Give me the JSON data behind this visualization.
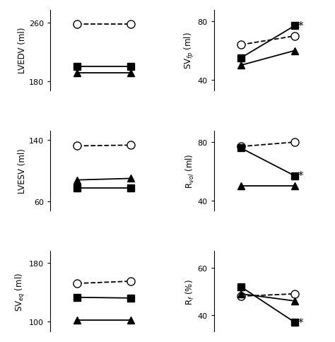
{
  "plots": [
    {
      "yticks": [
        180,
        260
      ],
      "ylim": [
        168,
        278
      ],
      "xlim": [
        0,
        1
      ],
      "series": [
        {
          "x": [
            0.25,
            0.75
          ],
          "y": [
            258,
            258
          ],
          "marker": "o",
          "linestyle": "--",
          "markersize": 8,
          "markerfacecolor": "white"
        },
        {
          "x": [
            0.25,
            0.75
          ],
          "y": [
            200,
            200
          ],
          "marker": "s",
          "linestyle": "-",
          "markersize": 7,
          "markerfacecolor": "black"
        },
        {
          "x": [
            0.25,
            0.75
          ],
          "y": [
            192,
            192
          ],
          "marker": "^",
          "linestyle": "-",
          "markersize": 7,
          "markerfacecolor": "black"
        }
      ],
      "star": null
    },
    {
      "yticks": [
        40,
        80
      ],
      "ylim": [
        33,
        88
      ],
      "xlim": [
        0,
        1
      ],
      "series": [
        {
          "x": [
            0.25,
            0.75
          ],
          "y": [
            64,
            70
          ],
          "marker": "o",
          "linestyle": "--",
          "markersize": 8,
          "markerfacecolor": "white"
        },
        {
          "x": [
            0.25,
            0.75
          ],
          "y": [
            55,
            77
          ],
          "marker": "s",
          "linestyle": "-",
          "markersize": 7,
          "markerfacecolor": "black"
        },
        {
          "x": [
            0.25,
            0.75
          ],
          "y": [
            50,
            60
          ],
          "marker": "^",
          "linestyle": "-",
          "markersize": 7,
          "markerfacecolor": "black"
        }
      ],
      "star": {
        "y": 77
      }
    },
    {
      "yticks": [
        60,
        140
      ],
      "ylim": [
        48,
        152
      ],
      "xlim": [
        0,
        1
      ],
      "series": [
        {
          "x": [
            0.25,
            0.75
          ],
          "y": [
            132,
            133
          ],
          "marker": "o",
          "linestyle": "--",
          "markersize": 8,
          "markerfacecolor": "white"
        },
        {
          "x": [
            0.25,
            0.75
          ],
          "y": [
            78,
            78
          ],
          "marker": "s",
          "linestyle": "-",
          "markersize": 7,
          "markerfacecolor": "black"
        },
        {
          "x": [
            0.25,
            0.75
          ],
          "y": [
            88,
            90
          ],
          "marker": "^",
          "linestyle": "-",
          "markersize": 7,
          "markerfacecolor": "black"
        }
      ],
      "star": null
    },
    {
      "yticks": [
        40,
        80
      ],
      "ylim": [
        33,
        88
      ],
      "xlim": [
        0,
        1
      ],
      "series": [
        {
          "x": [
            0.25,
            0.75
          ],
          "y": [
            77,
            80
          ],
          "marker": "o",
          "linestyle": "--",
          "markersize": 8,
          "markerfacecolor": "white"
        },
        {
          "x": [
            0.25,
            0.75
          ],
          "y": [
            76,
            57
          ],
          "marker": "s",
          "linestyle": "-",
          "markersize": 7,
          "markerfacecolor": "black"
        },
        {
          "x": [
            0.25,
            0.75
          ],
          "y": [
            50,
            50
          ],
          "marker": "^",
          "linestyle": "-",
          "markersize": 7,
          "markerfacecolor": "black"
        }
      ],
      "star": {
        "y": 57
      }
    },
    {
      "yticks": [
        100,
        180
      ],
      "ylim": [
        86,
        196
      ],
      "xlim": [
        0,
        1
      ],
      "series": [
        {
          "x": [
            0.25,
            0.75
          ],
          "y": [
            152,
            155
          ],
          "marker": "o",
          "linestyle": "--",
          "markersize": 8,
          "markerfacecolor": "white"
        },
        {
          "x": [
            0.25,
            0.75
          ],
          "y": [
            133,
            132
          ],
          "marker": "s",
          "linestyle": "-",
          "markersize": 7,
          "markerfacecolor": "black"
        },
        {
          "x": [
            0.25,
            0.75
          ],
          "y": [
            102,
            102
          ],
          "marker": "^",
          "linestyle": "-",
          "markersize": 7,
          "markerfacecolor": "black"
        }
      ],
      "star": null
    },
    {
      "yticks": [
        40,
        60
      ],
      "ylim": [
        33,
        67
      ],
      "xlim": [
        0,
        1
      ],
      "series": [
        {
          "x": [
            0.25,
            0.75
          ],
          "y": [
            48,
            49
          ],
          "marker": "o",
          "linestyle": "--",
          "markersize": 8,
          "markerfacecolor": "white"
        },
        {
          "x": [
            0.25,
            0.75
          ],
          "y": [
            52,
            37
          ],
          "marker": "s",
          "linestyle": "-",
          "markersize": 7,
          "markerfacecolor": "black"
        },
        {
          "x": [
            0.25,
            0.75
          ],
          "y": [
            49,
            46
          ],
          "marker": "^",
          "linestyle": "-",
          "markersize": 7,
          "markerfacecolor": "black"
        }
      ],
      "star": {
        "y": 37
      }
    }
  ],
  "ylabels": [
    "LVEDV (ml)",
    "SV$_{fp}$ (ml)",
    "LVESV (ml)",
    "R$_{vol}$ (ml)",
    "SV$_{eq}$ (ml)",
    "R$_{f}$ (%)"
  ]
}
